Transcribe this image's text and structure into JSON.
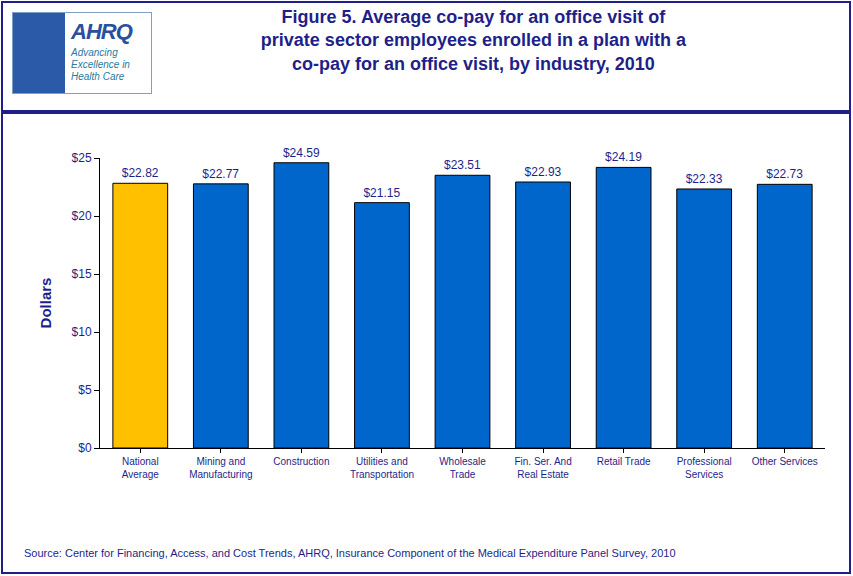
{
  "chart_data": {
    "type": "bar",
    "title": "Figure 5. Average co-pay for an office visit of private sector employees enrolled in a plan with a co-pay for an office visit, by industry, 2010",
    "y_label": "Dollars",
    "categories": [
      "National Average",
      "Mining and Manufacturing",
      "Construction",
      "Utilities and Transportation",
      "Wholesale Trade",
      "Fin. Ser. And Real Estate",
      "Retail Trade",
      "Professional Services",
      "Other Services"
    ],
    "values": [
      22.82,
      22.77,
      24.59,
      21.15,
      23.51,
      22.93,
      24.19,
      22.33,
      22.73
    ],
    "value_labels": [
      "$22.82",
      "$22.77",
      "$24.59",
      "$21.15",
      "$23.51",
      "$22.93",
      "$24.19",
      "$22.33",
      "$22.73"
    ],
    "colors": [
      "#ffc000",
      "#0066cc",
      "#0066cc",
      "#0066cc",
      "#0066cc",
      "#0066cc",
      "#0066cc",
      "#0066cc",
      "#0066cc"
    ],
    "ylim": [
      0,
      25
    ],
    "yticks": [
      {
        "value": 0,
        "label": "$0"
      },
      {
        "value": 5,
        "label": "$5"
      },
      {
        "value": 10,
        "label": "$10"
      },
      {
        "value": 15,
        "label": "$15"
      },
      {
        "value": 20,
        "label": "$20"
      },
      {
        "value": 25,
        "label": "$25"
      }
    ],
    "grid": false,
    "data_labels": true,
    "annotations": [
      "Source: Center for Financing, Access, and Cost Trends, AHRQ, Insurance Component of the Medical Expenditure Panel Survey, 2010"
    ],
    "logo": [
      "AHRQ",
      "Advancing Excellence in Health Care"
    ]
  }
}
